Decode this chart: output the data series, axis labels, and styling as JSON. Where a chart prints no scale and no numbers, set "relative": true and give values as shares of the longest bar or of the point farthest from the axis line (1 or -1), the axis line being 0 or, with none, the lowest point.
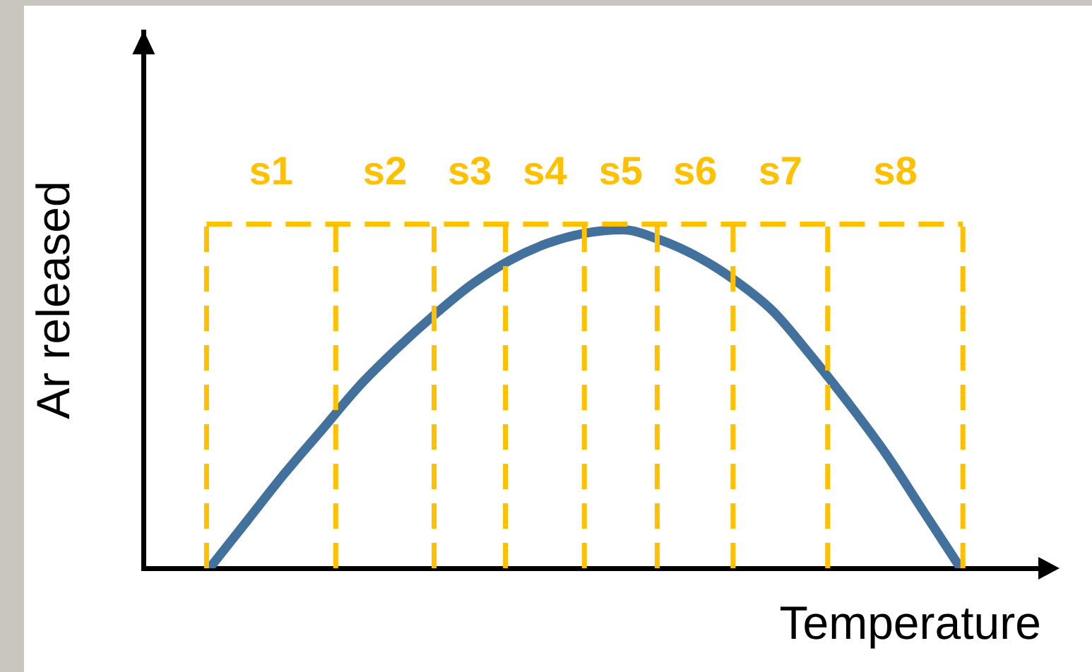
{
  "chart_data": {
    "type": "line",
    "relative": true,
    "xlabel": "Temperature",
    "ylabel": "Ar released",
    "categories": [
      null,
      null,
      null,
      null,
      null,
      null,
      null,
      null,
      null,
      null,
      null,
      null,
      null,
      null,
      null,
      null,
      null,
      null,
      null,
      null,
      null
    ],
    "series": [
      {
        "color": "#41719c",
        "values": [
          0,
          0.14,
          0.28,
          0.41,
          0.54,
          0.65,
          0.75,
          0.84,
          0.91,
          0.96,
          0.99,
          1,
          0.97,
          0.92,
          0.85,
          0.76,
          0.63,
          0.49,
          0.34,
          0.17,
          0
        ]
      }
    ],
    "annotations": [
      "s1",
      "s2",
      "s3",
      "s4",
      "s5",
      "s6",
      "s7",
      "s8"
    ],
    "grid": "x",
    "marker": "none",
    "line_style": "solid"
  }
}
